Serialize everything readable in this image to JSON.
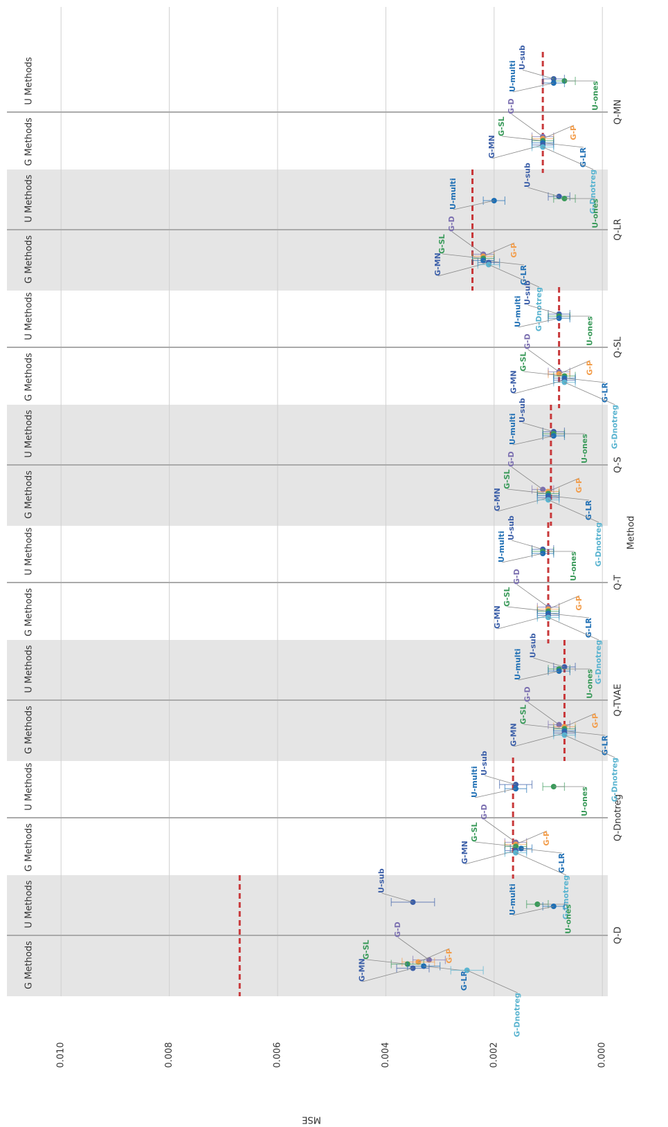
{
  "chart_data": {
    "type": "dotplot",
    "x_label": "MSE",
    "y_label": "Method",
    "categories": [
      "Q-D",
      "Q-Dnotreg",
      "Q-TVAE",
      "Q-T",
      "Q-S",
      "Q-SL",
      "Q-LR",
      "Q-MN"
    ],
    "xlim": [
      -0.0001,
      0.011
    ],
    "xticks": [
      {
        "value": 0,
        "label": "0.000"
      },
      {
        "value": 0.002,
        "label": "0.002"
      },
      {
        "value": 0.004,
        "label": "0.004"
      },
      {
        "value": 0.006,
        "label": "0.006"
      },
      {
        "value": 0.008,
        "label": "0.008"
      },
      {
        "value": 0.01,
        "label": "0.010"
      }
    ],
    "grid": true,
    "reference_color": "#c8383a",
    "reference_values": [
      0.0067,
      0.00165,
      0.0007,
      0.001,
      0.00095,
      0.0008,
      0.0024,
      0.0011
    ],
    "groups": [
      {
        "name": "G Methods",
        "series": [
          {
            "name": "G-D",
            "color": "#7b6fb0",
            "values": [
              0.0032,
              0.0016,
              0.0008,
              0.001,
              0.0011,
              0.0008,
              0.0022,
              0.0011
            ],
            "errors": [
              0.0003,
              0.0002,
              0.0002,
              0.0002,
              0.0002,
              0.0002,
              0.0002,
              0.0002
            ]
          },
          {
            "name": "G-P",
            "color": "#f29d4b",
            "values": [
              0.0034,
              0.0016,
              0.0007,
              0.001,
              0.001,
              0.0008,
              0.0022,
              0.0011
            ],
            "errors": [
              0.0003,
              0.0002,
              0.0002,
              0.0002,
              0.0002,
              0.0002,
              0.0002,
              0.0002
            ]
          },
          {
            "name": "G-SL",
            "color": "#3a9a5a",
            "values": [
              0.0036,
              0.0016,
              0.0007,
              0.001,
              0.001,
              0.0007,
              0.0022,
              0.0011
            ],
            "errors": [
              0.0003,
              0.0002,
              0.0002,
              0.0002,
              0.0002,
              0.0002,
              0.0002,
              0.0002
            ]
          },
          {
            "name": "G-LR",
            "color": "#1f6fb4",
            "values": [
              0.0033,
              0.0015,
              0.0007,
              0.001,
              0.001,
              0.0007,
              0.0022,
              0.0011
            ],
            "errors": [
              0.0003,
              0.0002,
              0.0002,
              0.0002,
              0.0002,
              0.0002,
              0.0002,
              0.0002
            ]
          },
          {
            "name": "G-MN",
            "color": "#3c5fa8",
            "values": [
              0.0035,
              0.0016,
              0.0007,
              0.001,
              0.001,
              0.0007,
              0.0021,
              0.0011
            ],
            "errors": [
              0.0003,
              0.0002,
              0.0002,
              0.0002,
              0.0002,
              0.0002,
              0.0002,
              0.0002
            ]
          },
          {
            "name": "G-Dnotreg",
            "color": "#5ab4d0",
            "values": [
              0.0025,
              0.0016,
              0.0007,
              0.001,
              0.001,
              0.0007,
              0.0021,
              0.0011
            ],
            "errors": [
              0.0003,
              0.0002,
              0.0002,
              0.0002,
              0.0002,
              0.0002,
              0.0002,
              0.0002
            ]
          }
        ]
      },
      {
        "name": "U Methods",
        "series": [
          {
            "name": "U-sub",
            "color": "#3c5fa8",
            "values": [
              0.0035,
              0.0016,
              0.0007,
              0.0011,
              0.0009,
              0.0008,
              0.0008,
              0.0009
            ],
            "errors": [
              0.0004,
              0.0003,
              0.0002,
              0.0002,
              0.0002,
              0.0002,
              0.0002,
              0.0002
            ]
          },
          {
            "name": "U-ones",
            "color": "#3a9a5a",
            "values": [
              0.0012,
              0.0009,
              0.0008,
              0.0011,
              0.0009,
              0.0008,
              0.0007,
              0.0007
            ],
            "errors": [
              0.0002,
              0.0002,
              0.0002,
              0.0002,
              0.0002,
              0.0002,
              0.0002,
              0.0002
            ]
          },
          {
            "name": "U-multi",
            "color": "#1f6fb4",
            "values": [
              0.0009,
              0.0016,
              0.0008,
              0.0011,
              0.0009,
              0.0008,
              0.002,
              0.0009
            ],
            "errors": [
              0.0002,
              0.0002,
              0.0002,
              0.0002,
              0.0002,
              0.0002,
              0.0002,
              0.0002
            ]
          }
        ]
      }
    ]
  }
}
